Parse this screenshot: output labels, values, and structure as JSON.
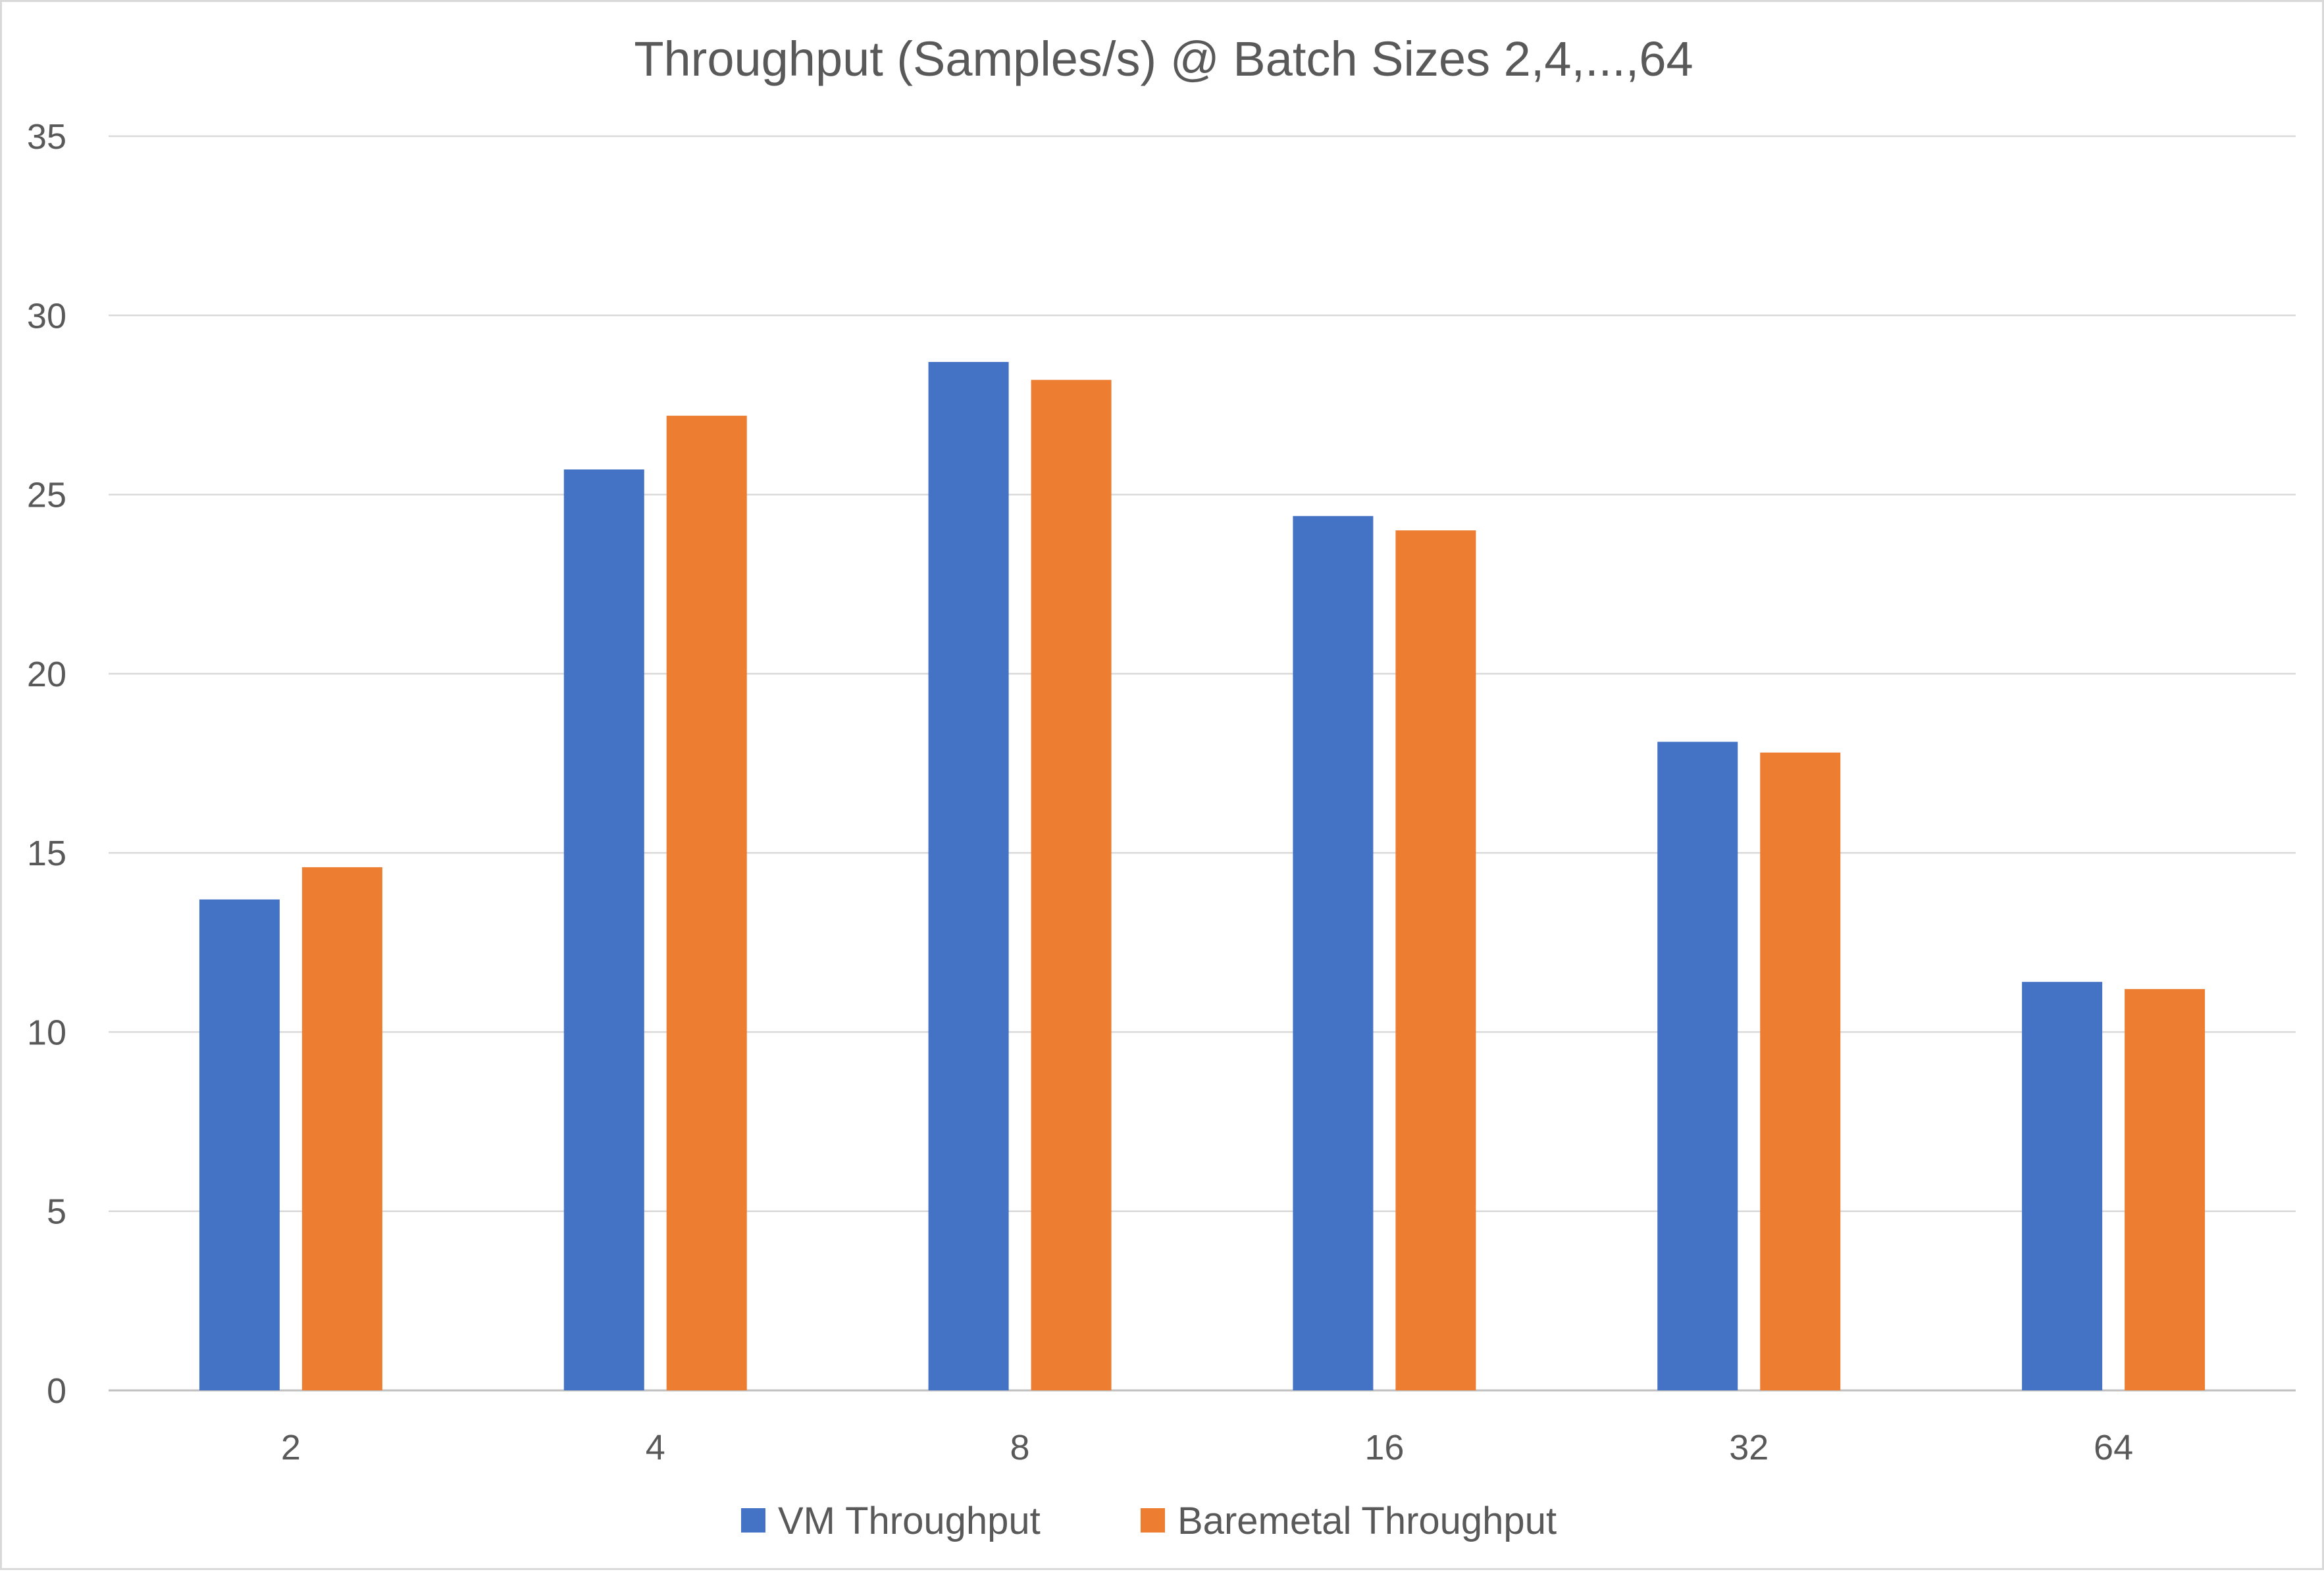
{
  "chart_data": {
    "type": "bar",
    "title": "Throughput (Samples/s) @ Batch Sizes 2,4,...,64",
    "xlabel": "",
    "ylabel": "",
    "categories": [
      "2",
      "4",
      "8",
      "16",
      "32",
      "64"
    ],
    "series": [
      {
        "name": "VM Throughput",
        "color": "#4472c4",
        "values": [
          13.7,
          25.7,
          28.7,
          24.4,
          18.1,
          11.4
        ]
      },
      {
        "name": "Baremetal Throughput",
        "color": "#ed7d31",
        "values": [
          14.6,
          27.2,
          28.2,
          24.0,
          17.8,
          11.2
        ]
      }
    ],
    "ylim": [
      0,
      35
    ],
    "yticks": [
      "0",
      "5",
      "10",
      "15",
      "20",
      "25",
      "30",
      "35"
    ],
    "grid": true,
    "legend_position": "bottom"
  }
}
